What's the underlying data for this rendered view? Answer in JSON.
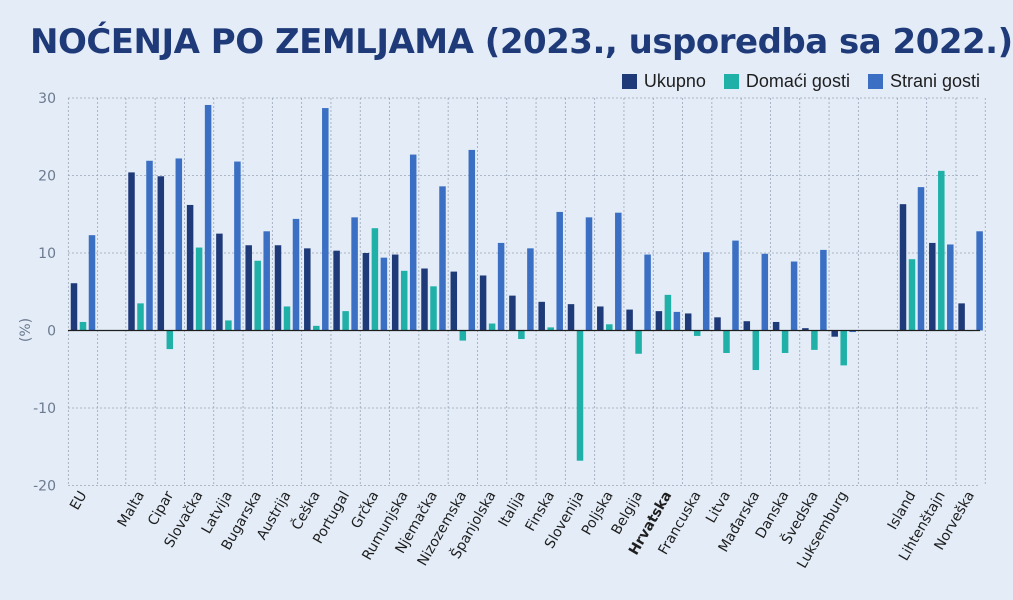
{
  "chart_data": {
    "type": "bar",
    "title": "NOĆENJA PO ZEMLJAMA (2023., usporedba sa 2022.)",
    "ylabel": "(%)",
    "ylim": [
      -20,
      30
    ],
    "yticks": [
      -20,
      -10,
      0,
      10,
      20,
      30
    ],
    "grid": true,
    "legend_position": "top-right",
    "highlight_category": "Hrvatska",
    "categories": [
      "EU",
      "Malta",
      "Cipar",
      "Slovačka",
      "Latvija",
      "Bugarska",
      "Austrija",
      "Češka",
      "Portugal",
      "Grčka",
      "Rumunjska",
      "Njemačka",
      "Nizozemska",
      "Španjolska",
      "Italija",
      "Finska",
      "Slovenija",
      "Poljska",
      "Belgija",
      "Hrvatska",
      "Francuska",
      "Litva",
      "Mađarska",
      "Danska",
      "Švedska",
      "Luksemburg",
      "Island",
      "Lihtenštajn",
      "Norveška"
    ],
    "groups": [
      [
        0
      ],
      [
        1,
        25
      ],
      [
        26,
        28
      ]
    ],
    "series": [
      {
        "name": "Ukupno",
        "color": "#1f3a78",
        "values": [
          6.1,
          20.4,
          19.9,
          16.2,
          12.5,
          11.0,
          11.0,
          10.6,
          10.3,
          10.0,
          9.8,
          8.0,
          7.6,
          7.1,
          4.5,
          3.7,
          3.4,
          3.1,
          2.7,
          2.5,
          2.2,
          1.7,
          1.2,
          1.1,
          0.3,
          -0.8,
          16.3,
          11.3,
          3.5
        ]
      },
      {
        "name": "Domaći gosti",
        "color": "#1fb0a8",
        "values": [
          1.1,
          3.5,
          -2.4,
          10.7,
          1.3,
          9.0,
          3.1,
          0.6,
          2.5,
          13.2,
          7.7,
          5.7,
          -1.3,
          0.9,
          -1.1,
          0.4,
          -16.8,
          0.8,
          -3.0,
          4.6,
          -0.7,
          -2.9,
          -5.1,
          -2.9,
          -2.5,
          -4.5,
          9.2,
          20.6,
          0.0
        ]
      },
      {
        "name": "Strani gosti",
        "color": "#3a6fc4",
        "values": [
          12.3,
          21.9,
          22.2,
          29.1,
          21.8,
          12.8,
          14.4,
          28.7,
          14.6,
          9.4,
          22.7,
          18.6,
          23.3,
          11.3,
          10.6,
          15.3,
          14.6,
          15.2,
          9.8,
          2.4,
          10.1,
          11.6,
          9.9,
          8.9,
          10.4,
          -0.2,
          18.5,
          11.1,
          12.8
        ]
      }
    ]
  }
}
